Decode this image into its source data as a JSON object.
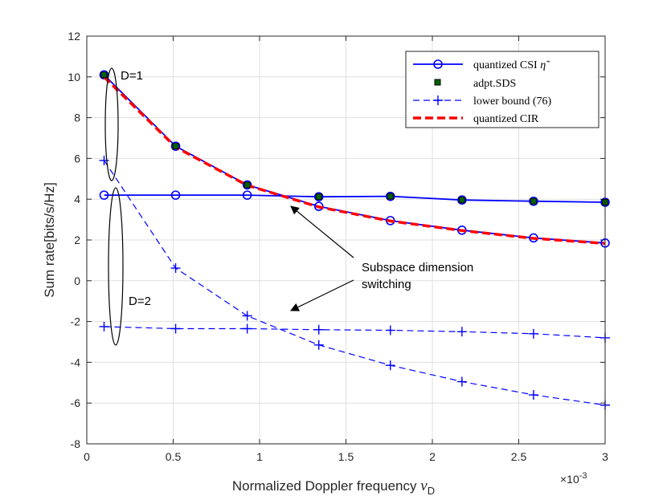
{
  "chart_data": {
    "type": "line",
    "title": "",
    "xlabel": "Normalized Doppler frequency",
    "xlabel_symbol": "ν",
    "xlabel_sub": "D",
    "ylabel": "Sum rate[bits/s/Hz]",
    "x_multiplier_base": "×10",
    "x_multiplier_exp": "-3",
    "xlim": [
      0,
      3
    ],
    "ylim": [
      -8,
      12
    ],
    "xticks": [
      0,
      0.5,
      1,
      1.5,
      2,
      2.5,
      3
    ],
    "xtick_labels": [
      "0",
      "0.5",
      "1",
      "1.5",
      "2",
      "2.5",
      "3"
    ],
    "yticks": [
      -8,
      -6,
      -4,
      -2,
      0,
      2,
      4,
      6,
      8,
      10,
      12
    ],
    "ytick_labels": [
      "-8",
      "-6",
      "-4",
      "-2",
      "0",
      "2",
      "4",
      "6",
      "8",
      "10",
      "12"
    ],
    "grid": true,
    "legend_position": "top-right",
    "x": [
      0.1,
      0.5143,
      0.9286,
      1.3429,
      1.7571,
      2.1714,
      2.5857,
      3.0
    ],
    "series": [
      {
        "name": "quantized CSI η̃ (D=1)",
        "legend": "quantized CSI",
        "legend_symbol": "η̃",
        "style": "solid-circle",
        "color": "#0000ff",
        "values": [
          10.1,
          6.6,
          4.7,
          3.65,
          2.95,
          2.48,
          2.1,
          1.85
        ]
      },
      {
        "name": "quantized CSI η̃ (D=2)",
        "style": "solid-circle",
        "color": "#0000ff",
        "values": [
          4.2,
          4.2,
          4.2,
          4.12,
          4.14,
          3.96,
          3.9,
          3.85
        ]
      },
      {
        "name": "adpt.SDS",
        "legend": "adpt.SDS",
        "style": "square-marker",
        "color": "#006400",
        "values": [
          10.1,
          6.6,
          4.7,
          4.12,
          4.14,
          3.96,
          3.9,
          3.85
        ]
      },
      {
        "name": "lower bound (76) (D=1)",
        "legend": "lower bound (76)",
        "style": "dashed-plus",
        "color": "#0000ff",
        "values": [
          5.9,
          0.62,
          -1.72,
          -3.15,
          -4.15,
          -4.95,
          -5.6,
          -6.1
        ]
      },
      {
        "name": "lower bound (76) (D=2)",
        "style": "dashed-plus",
        "color": "#0000ff",
        "values": [
          -2.25,
          -2.35,
          -2.35,
          -2.4,
          -2.43,
          -2.5,
          -2.6,
          -2.8
        ]
      },
      {
        "name": "quantized CIR",
        "legend": "quantized CIR",
        "style": "thick-dashed",
        "color": "#ff0000",
        "values": [
          10.0,
          6.55,
          4.68,
          3.62,
          2.93,
          2.46,
          2.08,
          1.83
        ]
      }
    ],
    "annotations": {
      "d1_label": "D=1",
      "d2_label": "D=2",
      "switch_line1": "Subspace dimension",
      "switch_line2": "switching"
    }
  }
}
